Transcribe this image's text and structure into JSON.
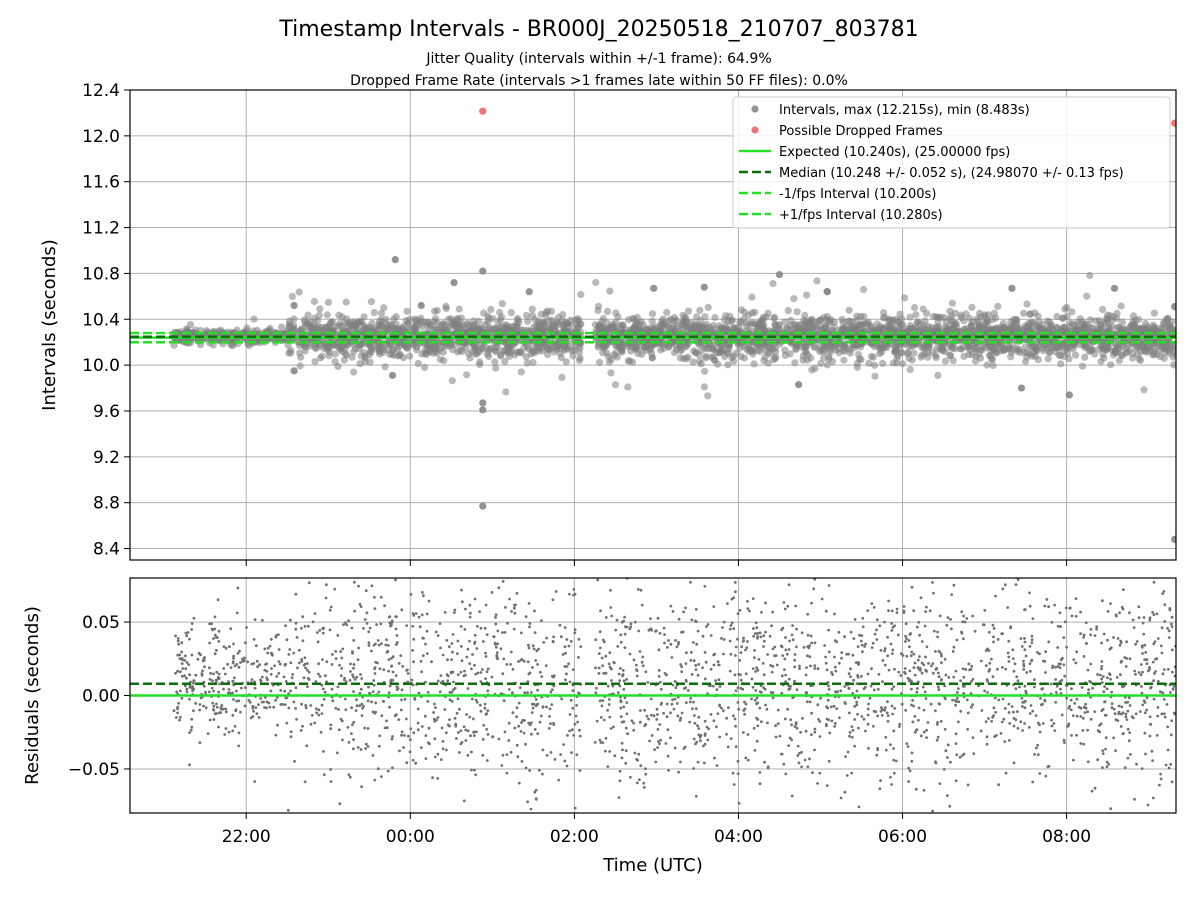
{
  "chart_data": {
    "title": "Timestamp Intervals - BR000J_20250518_210707_803781",
    "subtitle_lines": [
      "Jitter Quality (intervals within +/-1 frame): 64.9%",
      "Dropped Frame Rate (intervals >1 frames late within 50 FF files): 0.0%"
    ],
    "xlabel": "Time (UTC)",
    "x_tick_labels": [
      "22:00",
      "00:00",
      "02:00",
      "04:00",
      "06:00",
      "08:00"
    ],
    "x_tick_times": [
      "2025-05-18T22:00",
      "2025-05-19T00:00",
      "2025-05-19T02:00",
      "2025-05-19T04:00",
      "2025-05-19T06:00",
      "2025-05-19T08:00"
    ],
    "xlim": [
      "2025-05-18T20:35",
      "2025-05-19T09:20"
    ],
    "panels": [
      {
        "name": "intervals",
        "type": "scatter",
        "ylabel": "Intervals (seconds)",
        "ylim": [
          8.3,
          12.4
        ],
        "y_ticks": [
          8.4,
          8.8,
          9.2,
          9.6,
          10.0,
          10.4,
          10.8,
          11.2,
          11.6,
          12.0,
          12.4
        ],
        "y_tick_labels": [
          "8.4",
          "8.8",
          "9.2",
          "9.6",
          "10.0",
          "10.4",
          "10.8",
          "11.2",
          "11.6",
          "12.0",
          "12.4"
        ],
        "grid": true,
        "legend_position": "top-right",
        "series": [
          {
            "name": "Intervals, max (12.215s), min (8.483s)",
            "kind": "scatter",
            "color": "#808080",
            "points": [
              [
                "2025-05-19T00:53",
                10.82
              ],
              [
                "2025-05-18T23:49",
                10.92
              ],
              [
                "2025-05-19T00:53",
                9.67
              ],
              [
                "2025-05-19T00:53",
                9.61
              ],
              [
                "2025-05-19T00:53",
                8.77
              ],
              [
                "2025-05-19T09:19",
                8.48
              ],
              [
                "2025-05-19T04:30",
                10.79
              ],
              [
                "2025-05-19T02:58",
                10.67
              ],
              [
                "2025-05-19T08:35",
                10.67
              ],
              [
                "2025-05-19T07:20",
                10.67
              ],
              [
                "2025-05-19T01:27",
                10.64
              ],
              [
                "2025-05-19T05:05",
                10.64
              ],
              [
                "2025-05-18T22:35",
                10.52
              ],
              [
                "2025-05-19T03:35",
                10.68
              ],
              [
                "2025-05-19T08:02",
                9.74
              ],
              [
                "2025-05-19T00:08",
                10.52
              ],
              [
                "2025-05-19T09:19",
                10.51
              ],
              [
                "2025-05-18T23:47",
                9.91
              ],
              [
                "2025-05-19T00:32",
                10.72
              ],
              [
                "2025-05-18T22:35",
                9.95
              ],
              [
                "2025-05-19T04:44",
                9.83
              ],
              [
                "2025-05-19T07:27",
                9.8
              ]
            ]
          },
          {
            "name": "Possible Dropped Frames",
            "kind": "scatter",
            "color": "#f05a5a",
            "points": [
              [
                "2025-05-19T00:53",
                12.215
              ],
              [
                "2025-05-19T09:19",
                12.11
              ]
            ]
          },
          {
            "name": "Expected (10.240s), (25.00000 fps)",
            "kind": "hline",
            "y": 10.24,
            "color": "#22e022",
            "style": "solid"
          },
          {
            "name": "Median (10.248 +/- 0.052 s), (24.98070 +/- 0.13 fps)",
            "kind": "hline",
            "y": 10.248,
            "color": "#0b6e0b",
            "style": "dashed"
          },
          {
            "name": "-1/fps Interval (10.200s)",
            "kind": "hline",
            "y": 10.2,
            "color": "#22e022",
            "style": "dashed"
          },
          {
            "name": "+1/fps Interval (10.280s)",
            "kind": "hline",
            "y": 10.28,
            "color": "#22e022",
            "style": "dashed"
          }
        ],
        "approx_point_count": 3600,
        "approx_distribution": {
          "center": 10.248,
          "spread_sd": 0.12
        }
      },
      {
        "name": "residuals",
        "type": "scatter",
        "ylabel": "Residuals (seconds)",
        "ylim": [
          -0.08,
          0.08
        ],
        "y_ticks": [
          -0.05,
          0.0,
          0.05
        ],
        "y_tick_labels": [
          "−0.05",
          "0.00",
          "0.05"
        ],
        "grid": true,
        "series": [
          {
            "name": "Residuals",
            "kind": "scatter",
            "color": "#707070"
          },
          {
            "name": "Zero",
            "kind": "hline",
            "y": 0.0,
            "color": "#22e022",
            "style": "solid"
          },
          {
            "name": "Median offset",
            "kind": "hline",
            "y": 0.008,
            "color": "#0b6e0b",
            "style": "dashed"
          }
        ],
        "approx_point_count": 2600
      }
    ]
  }
}
